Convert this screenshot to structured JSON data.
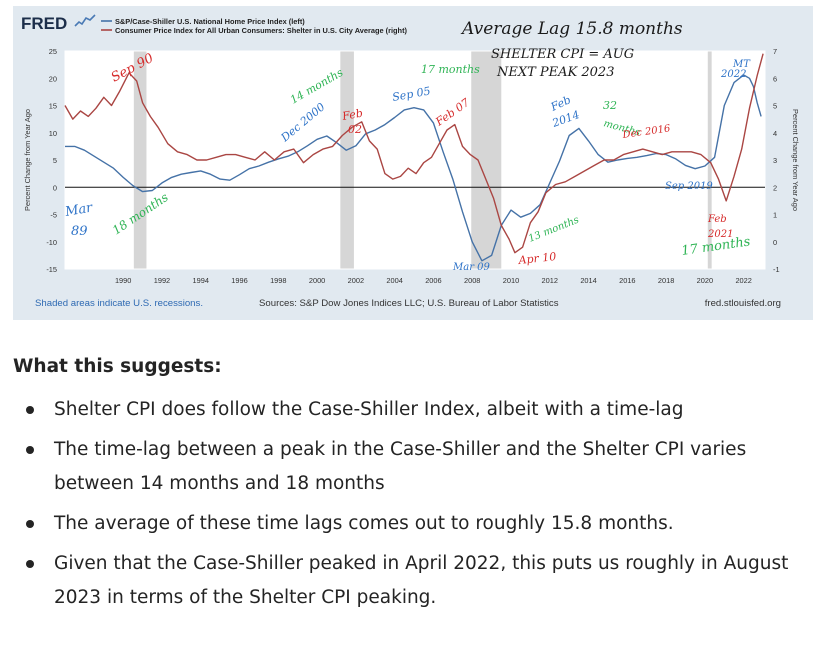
{
  "chart_data": {
    "type": "line",
    "brand": "FRED",
    "legend": [
      {
        "name": "S&P/Case-Shiller U.S. National Home Price Index (left)",
        "color": "#4572a7"
      },
      {
        "name": "Consumer Price Index for All Urban Consumers: Shelter in U.S. City Average (right)",
        "color": "#aa4643"
      }
    ],
    "ylabel_left": "Percent Change from Year Ago",
    "ylabel_right": "Percent Change from Year Ago",
    "ylim_left": [
      -15,
      25
    ],
    "ylim_right": [
      -1,
      7
    ],
    "xlim": [
      1987,
      2023.1
    ],
    "yticks_left": [
      "25",
      "20",
      "15",
      "10",
      "5",
      "0",
      "-5",
      "-10",
      "-15"
    ],
    "yticks_right": [
      "7",
      "6",
      "5",
      "4",
      "3",
      "2",
      "1",
      "0",
      "-1"
    ],
    "xticks": [
      "1990",
      "1992",
      "1994",
      "1996",
      "1998",
      "2000",
      "2002",
      "2004",
      "2006",
      "2008",
      "2010",
      "2012",
      "2014",
      "2016",
      "2018",
      "2020",
      "2022"
    ],
    "recessions": [
      [
        1990.55,
        1991.2
      ],
      [
        2001.2,
        2001.9
      ],
      [
        2007.95,
        2009.5
      ],
      [
        2020.15,
        2020.35
      ]
    ],
    "zero_line": true,
    "grid": false,
    "series": [
      {
        "name": "S&P/Case-Shiller U.S. National Home Price Index (left)",
        "axis": "left",
        "x": [
          1987,
          1987.5,
          1988,
          1988.5,
          1989,
          1989.5,
          1990,
          1990.5,
          1991,
          1991.5,
          1992,
          1992.5,
          1993,
          1993.5,
          1994,
          1994.5,
          1995,
          1995.5,
          1996,
          1996.5,
          1997,
          1997.5,
          1998,
          1998.5,
          1999,
          1999.5,
          2000,
          2000.5,
          2001,
          2001.5,
          2002,
          2002.5,
          2003,
          2003.5,
          2004,
          2004.5,
          2005,
          2005.5,
          2006,
          2006.5,
          2007,
          2007.5,
          2008,
          2008.5,
          2009,
          2009.5,
          2010,
          2010.5,
          2011,
          2011.5,
          2012,
          2012.5,
          2013,
          2013.5,
          2014,
          2014.5,
          2015,
          2015.5,
          2016,
          2016.5,
          2017,
          2017.5,
          2018,
          2018.5,
          2019,
          2019.5,
          2020,
          2020.5,
          2021,
          2021.5,
          2022,
          2022.3,
          2022.5,
          2022.7,
          2022.9
        ],
        "values": [
          7.5,
          7.5,
          6.8,
          5.7,
          4.6,
          3.5,
          1.8,
          0.3,
          -0.8,
          -0.6,
          0.8,
          1.8,
          2.4,
          2.7,
          3.0,
          2.4,
          1.5,
          1.3,
          2.3,
          3.4,
          3.9,
          4.6,
          5.2,
          5.7,
          6.5,
          7.6,
          8.8,
          9.4,
          8.2,
          6.8,
          7.6,
          9.8,
          10.5,
          11.5,
          12.8,
          14.2,
          14.6,
          14.2,
          11.8,
          6.5,
          1.5,
          -4.5,
          -10.0,
          -13.5,
          -12.5,
          -7.0,
          -4.2,
          -5.5,
          -4.8,
          -3.2,
          0.8,
          4.8,
          9.5,
          10.8,
          8.5,
          6.0,
          4.6,
          5.0,
          5.3,
          5.5,
          5.8,
          6.2,
          6.0,
          5.2,
          4.0,
          3.4,
          3.9,
          5.5,
          15.0,
          19.2,
          20.6,
          20.0,
          18.5,
          15.5,
          13.0
        ]
      },
      {
        "name": "Consumer Price Index for All Urban Consumers: Shelter in U.S. City Average (right)",
        "axis": "right",
        "x": [
          1987,
          1987.4,
          1987.8,
          1988.2,
          1988.6,
          1989.0,
          1989.4,
          1989.8,
          1990.3,
          1990.7,
          1991.0,
          1991.4,
          1991.8,
          1992.3,
          1992.8,
          1993.3,
          1993.8,
          1994.3,
          1994.8,
          1995.3,
          1995.8,
          1996.3,
          1996.8,
          1997.3,
          1997.8,
          1998.3,
          1998.8,
          1999.3,
          1999.8,
          2000.3,
          2000.8,
          2001.3,
          2001.8,
          2002.3,
          2002.7,
          2003.1,
          2003.5,
          2003.9,
          2004.3,
          2004.7,
          2005.1,
          2005.5,
          2005.9,
          2006.3,
          2006.7,
          2007.1,
          2007.5,
          2007.9,
          2008.3,
          2008.7,
          2009.1,
          2009.5,
          2009.9,
          2010.2,
          2010.6,
          2011.0,
          2011.4,
          2011.8,
          2012.3,
          2012.8,
          2013.3,
          2013.8,
          2014.3,
          2014.8,
          2015.3,
          2015.8,
          2016.3,
          2016.8,
          2017.3,
          2017.8,
          2018.3,
          2018.8,
          2019.3,
          2019.8,
          2020.3,
          2020.7,
          2021.1,
          2021.5,
          2021.9,
          2022.3,
          2022.7,
          2023.0
        ],
        "values": [
          5.0,
          4.5,
          4.8,
          4.6,
          4.9,
          5.3,
          5.0,
          5.5,
          6.2,
          5.9,
          5.1,
          4.6,
          4.2,
          3.6,
          3.3,
          3.2,
          3.0,
          3.0,
          3.1,
          3.2,
          3.2,
          3.1,
          3.0,
          3.3,
          3.0,
          3.3,
          3.4,
          2.9,
          3.2,
          3.4,
          3.5,
          3.9,
          4.2,
          4.4,
          3.7,
          3.4,
          2.5,
          2.3,
          2.4,
          2.7,
          2.5,
          2.9,
          3.1,
          3.6,
          4.1,
          4.3,
          3.5,
          3.2,
          3.0,
          2.3,
          1.6,
          0.6,
          0.1,
          -0.4,
          -0.2,
          0.7,
          1.1,
          1.8,
          2.1,
          2.2,
          2.4,
          2.6,
          2.8,
          3.0,
          3.0,
          3.2,
          3.3,
          3.4,
          3.3,
          3.2,
          3.3,
          3.3,
          3.3,
          3.2,
          2.9,
          2.3,
          1.5,
          2.4,
          3.4,
          4.9,
          6.1,
          6.9
        ]
      }
    ],
    "annotations": [
      {
        "text": "Average Lag 15.8 months",
        "color": "#1a1a1a"
      },
      {
        "text": "SHELTER CPI = AUG",
        "color": "#1a1a1a"
      },
      {
        "text": "NEXT PEAK    2023",
        "color": "#1a1a1a"
      },
      {
        "text": "Sep 90",
        "color": "#d62b2b"
      },
      {
        "text": "Mar",
        "color": "#2e73c8"
      },
      {
        "text": "89",
        "color": "#2e73c8"
      },
      {
        "text": "18 months",
        "color": "#2fb455"
      },
      {
        "text": "14 months",
        "color": "#2fb455"
      },
      {
        "text": "Dec 2000",
        "color": "#2e73c8"
      },
      {
        "text": "Feb",
        "color": "#d62b2b"
      },
      {
        "text": "02",
        "color": "#d62b2b"
      },
      {
        "text": "Sep 05",
        "color": "#2e73c8"
      },
      {
        "text": "17 months",
        "color": "#2fb455"
      },
      {
        "text": "Feb 07",
        "color": "#d62b2b"
      },
      {
        "text": "Mar 09",
        "color": "#2e73c8"
      },
      {
        "text": "Apr 10",
        "color": "#d62b2b"
      },
      {
        "text": "13 months",
        "color": "#2fb455"
      },
      {
        "text": "Feb",
        "color": "#2e73c8"
      },
      {
        "text": "2014",
        "color": "#2e73c8"
      },
      {
        "text": "32",
        "color": "#2fb455"
      },
      {
        "text": "months",
        "color": "#2fb455"
      },
      {
        "text": "Dec 2016",
        "color": "#d62b2b"
      },
      {
        "text": "Sep 2019",
        "color": "#2e73c8"
      },
      {
        "text": "Feb",
        "color": "#d62b2b"
      },
      {
        "text": "2021",
        "color": "#d62b2b"
      },
      {
        "text": "17 months",
        "color": "#2fb455"
      },
      {
        "text": "MT",
        "color": "#2e73c8"
      },
      {
        "text": "2022",
        "color": "#2e73c8"
      }
    ],
    "footer_left": "Shaded areas indicate U.S. recessions.",
    "footer_center": "Sources: S&P Dow Jones Indices LLC; U.S. Bureau of Labor Statistics",
    "footer_right": "fred.stlouisfed.org"
  },
  "article": {
    "heading": "What this suggests:",
    "bullets": [
      "Shelter CPI does follow the Case-Shiller Index, albeit with a time-lag",
      "The time-lag between a peak in the Case-Shiller and the Shelter CPI varies between 14 months and 18 months",
      "The average of these time lags comes out to roughly 15.8 months.",
      "Given that the Case-Shiller peaked in April 2022, this puts us roughly in August 2023 in terms of the Shelter CPI peaking."
    ]
  }
}
